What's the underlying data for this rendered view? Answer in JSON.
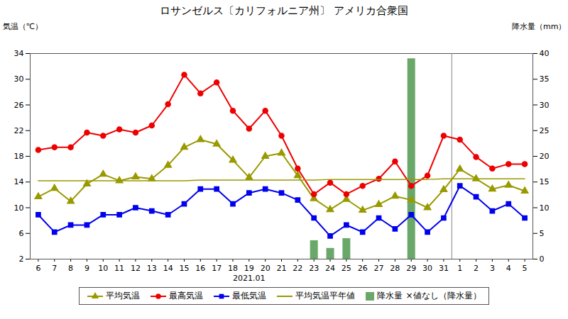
{
  "chart_data": {
    "type": "line",
    "title": "ロサンゼルス〔カリフォルニア州〕 アメリカ合衆国",
    "y_label": "気温（℃）",
    "y2_label": "降水量（mm）",
    "categories": [
      "6",
      "7",
      "8",
      "9",
      "10",
      "11",
      "12",
      "13",
      "14",
      "15",
      "16",
      "17",
      "18",
      "19",
      "20",
      "21",
      "22",
      "23",
      "24",
      "25",
      "26",
      "27",
      "28",
      "29",
      "30",
      "31",
      "1",
      "2",
      "3",
      "4",
      "5"
    ],
    "ylim": [
      2,
      34
    ],
    "yticks": [
      2,
      6,
      10,
      14,
      18,
      22,
      26,
      30,
      34
    ],
    "y2lim": [
      0,
      40
    ],
    "y2ticks": [
      0,
      5,
      10,
      15,
      20,
      25,
      30,
      35,
      40
    ],
    "grid": false,
    "legend": "bottom",
    "annotations": [
      {
        "text": "2021.01",
        "x": "19"
      },
      {
        "text": "×値なし（降水量）"
      }
    ],
    "series": [
      {
        "name": "平均気温",
        "type": "line",
        "color": "#999900",
        "marker": "triangle",
        "values": [
          11.7,
          13.0,
          11.0,
          13.7,
          15.2,
          14.2,
          14.8,
          14.5,
          16.6,
          19.4,
          20.6,
          19.9,
          17.4,
          14.7,
          18.0,
          18.5,
          15.0,
          11.4,
          9.7,
          11.3,
          9.6,
          10.5,
          11.8,
          11.2,
          10.0,
          12.8,
          16.0,
          14.5,
          12.9,
          13.5,
          12.6
        ]
      },
      {
        "name": "最高気温",
        "type": "line",
        "color": "#ee0000",
        "marker": "circle",
        "values": [
          19.0,
          19.4,
          19.4,
          21.7,
          21.2,
          22.2,
          21.7,
          22.8,
          26.1,
          30.7,
          27.8,
          29.5,
          25.1,
          22.3,
          25.1,
          21.2,
          16.1,
          12.1,
          13.9,
          12.1,
          13.4,
          14.5,
          17.2,
          13.4,
          15.0,
          21.2,
          20.6,
          17.9,
          16.1,
          16.8,
          16.8
        ]
      },
      {
        "name": "最低気温",
        "type": "line",
        "color": "#0000ee",
        "marker": "square",
        "values": [
          8.9,
          6.2,
          7.3,
          7.3,
          8.9,
          8.9,
          10.0,
          9.5,
          8.9,
          10.6,
          12.9,
          12.9,
          10.6,
          12.3,
          12.9,
          12.3,
          11.2,
          8.4,
          5.6,
          7.3,
          6.2,
          8.4,
          6.7,
          8.9,
          6.2,
          8.4,
          13.4,
          11.7,
          9.5,
          10.6,
          8.4
        ]
      },
      {
        "name": "平均気温平年値",
        "type": "line",
        "color": "#999900",
        "values": [
          14.2,
          14.2,
          14.2,
          14.2,
          14.2,
          14.2,
          14.2,
          14.2,
          14.2,
          14.2,
          14.3,
          14.3,
          14.3,
          14.3,
          14.3,
          14.3,
          14.3,
          14.3,
          14.4,
          14.4,
          14.4,
          14.4,
          14.4,
          14.4,
          14.4,
          14.5,
          14.5,
          14.5,
          14.5,
          14.5,
          14.5
        ]
      },
      {
        "name": "降水量",
        "type": "bar",
        "axis": "y2",
        "color": "#6aa86a",
        "values": [
          0,
          0,
          0,
          0,
          0,
          0,
          0,
          0,
          0,
          0,
          0,
          0,
          0,
          0,
          0,
          0,
          0,
          3.6,
          2.1,
          4.0,
          0,
          0,
          0,
          39.0,
          0,
          0,
          0,
          0,
          0,
          0,
          0
        ]
      }
    ]
  }
}
